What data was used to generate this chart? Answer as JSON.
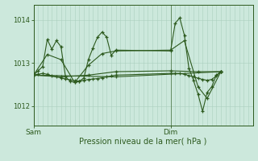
{
  "xlabel": "Pression niveau de la mer( hPa )",
  "background_color": "#cce8dc",
  "grid_color": "#aacfbf",
  "line_color": "#2d5a1e",
  "text_color": "#2d5a1e",
  "ylim": [
    1011.55,
    1014.35
  ],
  "yticks": [
    1012,
    1013,
    1014
  ],
  "xlim": [
    0,
    48
  ],
  "sam_x": 0,
  "dim_x": 30,
  "xtick_positions": [
    0,
    30
  ],
  "xtick_labels": [
    "Sam",
    "Dim"
  ],
  "series1": [
    [
      0,
      1012.72
    ],
    [
      1,
      1012.82
    ],
    [
      2,
      1012.92
    ],
    [
      3,
      1013.55
    ],
    [
      4,
      1013.32
    ],
    [
      5,
      1013.52
    ],
    [
      6,
      1013.38
    ],
    [
      7,
      1012.68
    ],
    [
      8,
      1012.58
    ],
    [
      9,
      1012.55
    ],
    [
      10,
      1012.58
    ],
    [
      11,
      1012.65
    ],
    [
      12,
      1013.08
    ],
    [
      13,
      1013.35
    ],
    [
      14,
      1013.6
    ],
    [
      15,
      1013.72
    ],
    [
      16,
      1013.6
    ],
    [
      17,
      1013.18
    ],
    [
      18,
      1013.3
    ],
    [
      30,
      1013.28
    ],
    [
      31,
      1013.92
    ],
    [
      32,
      1014.05
    ],
    [
      33,
      1013.65
    ],
    [
      34,
      1012.88
    ],
    [
      35,
      1012.6
    ],
    [
      36,
      1012.28
    ],
    [
      37,
      1011.88
    ],
    [
      38,
      1012.32
    ],
    [
      39,
      1012.45
    ],
    [
      40,
      1012.72
    ],
    [
      41,
      1012.8
    ]
  ],
  "series2": [
    [
      0,
      1012.72
    ],
    [
      1,
      1012.74
    ],
    [
      2,
      1012.76
    ],
    [
      3,
      1012.74
    ],
    [
      4,
      1012.7
    ],
    [
      5,
      1012.68
    ],
    [
      6,
      1012.66
    ],
    [
      7,
      1012.63
    ],
    [
      8,
      1012.61
    ],
    [
      9,
      1012.59
    ],
    [
      10,
      1012.58
    ],
    [
      11,
      1012.6
    ],
    [
      12,
      1012.62
    ],
    [
      13,
      1012.63
    ],
    [
      14,
      1012.64
    ],
    [
      15,
      1012.66
    ],
    [
      16,
      1012.68
    ],
    [
      17,
      1012.7
    ],
    [
      18,
      1012.72
    ],
    [
      30,
      1012.76
    ],
    [
      31,
      1012.76
    ],
    [
      32,
      1012.76
    ],
    [
      33,
      1012.74
    ],
    [
      34,
      1012.71
    ],
    [
      35,
      1012.68
    ],
    [
      36,
      1012.65
    ],
    [
      37,
      1012.62
    ],
    [
      38,
      1012.6
    ],
    [
      39,
      1012.62
    ],
    [
      40,
      1012.7
    ],
    [
      41,
      1012.8
    ]
  ],
  "series3": [
    [
      0,
      1012.72
    ],
    [
      3,
      1013.2
    ],
    [
      6,
      1013.08
    ],
    [
      9,
      1012.55
    ],
    [
      12,
      1012.95
    ],
    [
      15,
      1013.22
    ],
    [
      18,
      1013.28
    ],
    [
      30,
      1013.3
    ],
    [
      33,
      1013.52
    ],
    [
      36,
      1012.45
    ],
    [
      38,
      1012.18
    ],
    [
      41,
      1012.8
    ]
  ],
  "series4": [
    [
      0,
      1012.72
    ],
    [
      6,
      1012.68
    ],
    [
      12,
      1012.72
    ],
    [
      18,
      1012.8
    ],
    [
      30,
      1012.82
    ],
    [
      36,
      1012.8
    ],
    [
      41,
      1012.8
    ]
  ],
  "series5": [
    [
      0,
      1012.72
    ],
    [
      18,
      1012.68
    ],
    [
      41,
      1012.8
    ]
  ]
}
